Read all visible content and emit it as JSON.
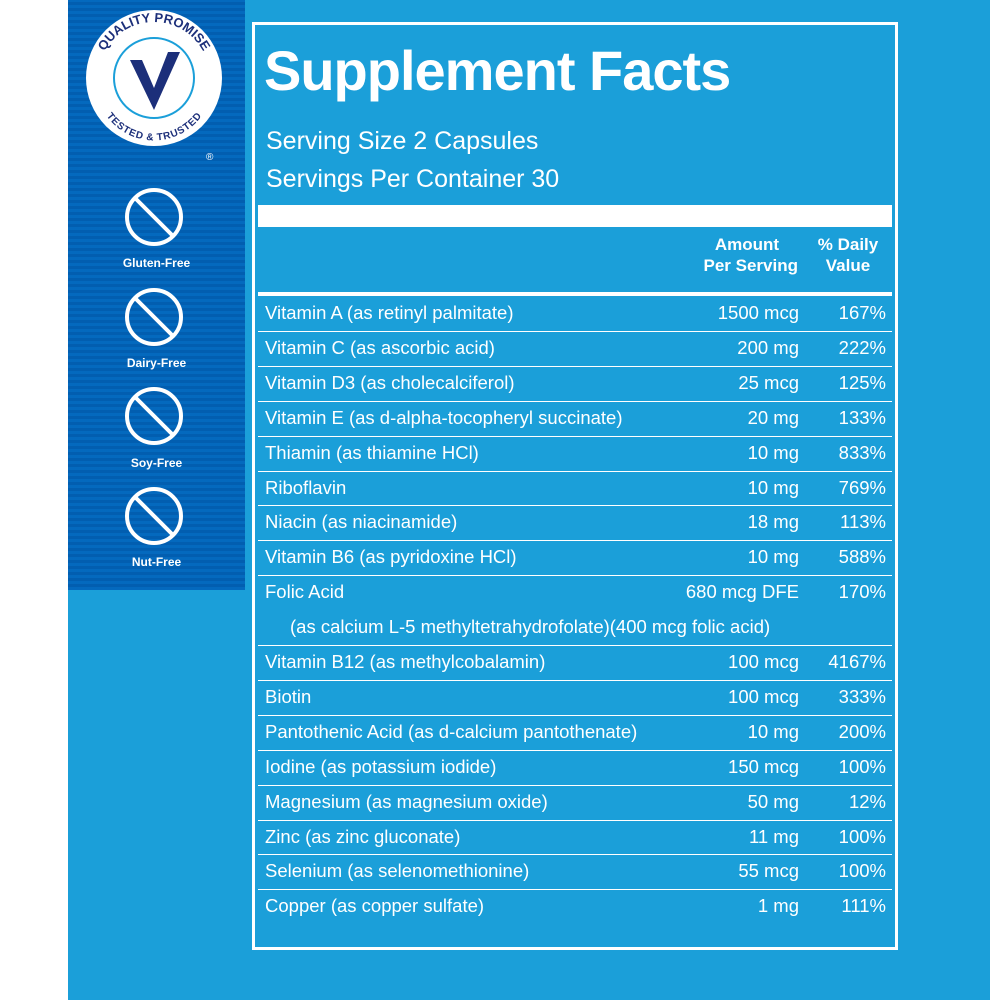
{
  "badge": {
    "top_text": "QUALITY PROMISE",
    "bottom_text": "TESTED & TRUSTED",
    "mark": "®"
  },
  "icons": [
    "Gluten-Free",
    "Dairy-Free",
    "Soy-Free",
    "Nut-Free"
  ],
  "facts": {
    "title": "Supplement Facts",
    "serving_size": "Serving Size 2 Capsules",
    "servings_per_container": "Servings Per Container 30",
    "header": {
      "amount": [
        "Amount",
        "Per Serving"
      ],
      "daily_value": [
        "% Daily",
        "Value"
      ]
    },
    "rows": [
      {
        "name": "Vitamin A (as retinyl palmitate)",
        "amount": "1500 mcg",
        "dv": "167%"
      },
      {
        "name": "Vitamin C (as ascorbic acid)",
        "amount": "200 mg",
        "dv": "222%"
      },
      {
        "name": "Vitamin D3 (as cholecalciferol)",
        "amount": "25 mcg",
        "dv": "125%"
      },
      {
        "name": "Vitamin E (as d-alpha-tocopheryl succinate)",
        "amount": "20 mg",
        "dv": "133%"
      },
      {
        "name": "Thiamin (as thiamine HCl)",
        "amount": "10 mg",
        "dv": "833%"
      },
      {
        "name": "Riboflavin",
        "amount": "10 mg",
        "dv": "769%"
      },
      {
        "name": "Niacin (as niacinamide)",
        "amount": "18 mg",
        "dv": "113%"
      },
      {
        "name": "Vitamin B6 (as pyridoxine HCl)",
        "amount": "10 mg",
        "dv": "588%"
      },
      {
        "name": "Folic Acid",
        "amount": "680 mcg DFE",
        "dv": "170%",
        "note": "(as calcium L-5 methyltetrahydrofolate)(400 mcg folic acid)"
      },
      {
        "name": "Vitamin B12 (as methylcobalamin)",
        "amount": "100 mcg",
        "dv": "4167%"
      },
      {
        "name": "Biotin",
        "amount": "100 mcg",
        "dv": "333%"
      },
      {
        "name": "Pantothenic Acid (as d-calcium pantothenate)",
        "amount": "10 mg",
        "dv": "200%"
      },
      {
        "name": "Iodine (as potassium iodide)",
        "amount": "150 mcg",
        "dv": "100%"
      },
      {
        "name": "Magnesium (as magnesium oxide)",
        "amount": "50 mg",
        "dv": "12%"
      },
      {
        "name": "Zinc (as zinc gluconate)",
        "amount": "11 mg",
        "dv": "100%"
      },
      {
        "name": "Selenium (as selenomethionine)",
        "amount": "55 mcg",
        "dv": "100%"
      },
      {
        "name": "Copper (as copper sulfate)",
        "amount": "1 mg",
        "dv": "111%"
      }
    ]
  }
}
